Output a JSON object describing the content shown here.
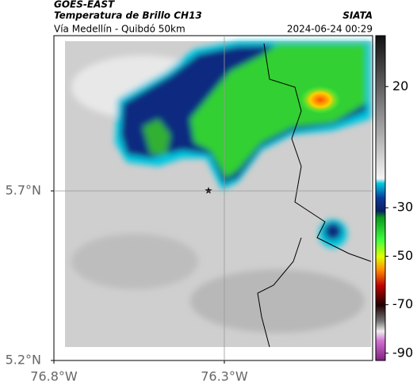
{
  "header": {
    "source": "GOES-EAST",
    "product": "Temperatura de Brillo CH13",
    "region": "Vía Medellín - Quibdó 50km",
    "org": "SIATA",
    "timestamp": "2024-06-24 00:29"
  },
  "map": {
    "xlim": [
      -76.8,
      -75.865
    ],
    "ylim": [
      5.2,
      6.158
    ],
    "xticks": [
      {
        "value": -76.8,
        "label": "76.8°W"
      },
      {
        "value": -76.3,
        "label": "76.3°W"
      }
    ],
    "yticks": [
      {
        "value": 5.2,
        "label": "5.2°N"
      },
      {
        "value": 5.7,
        "label": "5.7°N"
      }
    ],
    "grid": true
  },
  "colorbar": {
    "lim": [
      -93,
      41
    ],
    "ticks": [
      20,
      -30,
      -50,
      -70,
      -90
    ]
  }
}
